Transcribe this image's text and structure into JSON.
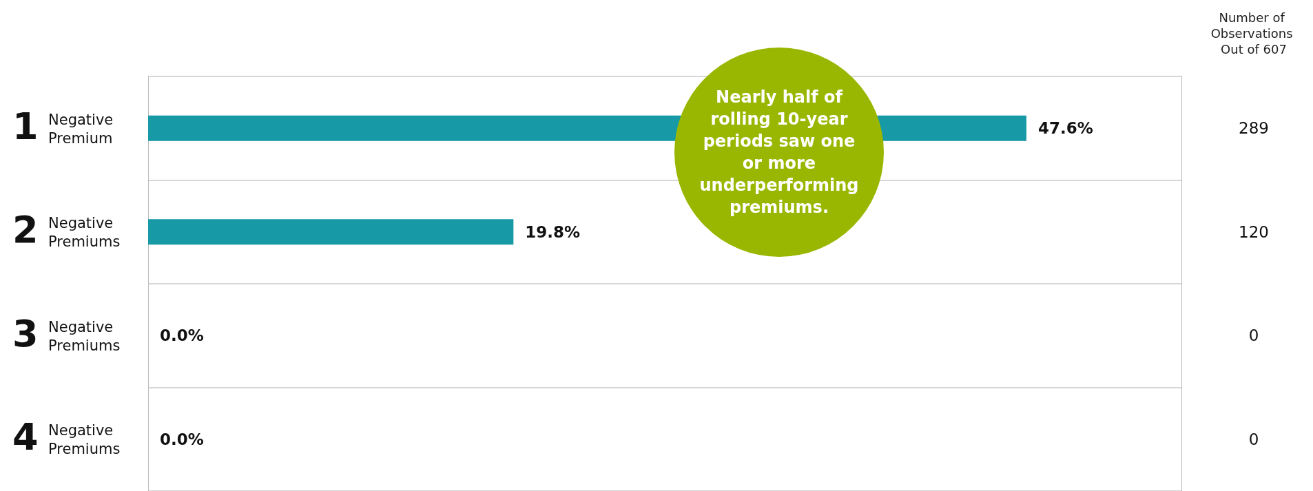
{
  "chart_data": {
    "type": "bar",
    "orientation": "horizontal",
    "categories": [
      "1 Negative Premium",
      "2 Negative Premiums",
      "3 Negative Premiums",
      "4 Negative Premiums"
    ],
    "values": [
      47.6,
      19.8,
      0.0,
      0.0
    ],
    "value_labels": [
      "47.6%",
      "19.8%",
      "0.0%",
      "0.0%"
    ],
    "color": "#1899a6",
    "xlim": [
      0,
      56
    ],
    "grid": "y",
    "annotations": [
      "Nearly half of rolling 10-year periods saw one or more underperforming premiums.",
      "Number of Observations Out of 607",
      "289",
      "120",
      "0",
      "0"
    ]
  }
}
